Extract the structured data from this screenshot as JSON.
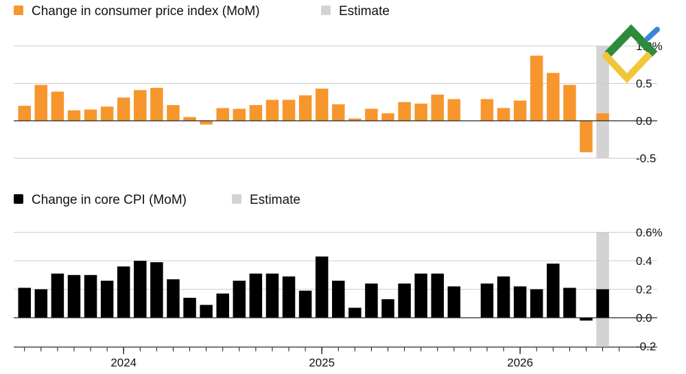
{
  "colors": {
    "cpi": "#f7962d",
    "core": "#000000",
    "estimate": "#d3d3d3",
    "grid": "#cccccc",
    "zero": "#222222"
  },
  "logo": {
    "name": "brand-logo",
    "colors": [
      "#2e8b3c",
      "#f2c63a",
      "#3a86d6"
    ]
  },
  "chart_data": [
    {
      "type": "bar",
      "series": [
        {
          "name": "Change in consumer price index (MoM)",
          "values": [
            0.2,
            0.48,
            0.39,
            0.14,
            0.15,
            0.19,
            0.31,
            0.41,
            0.44,
            0.21,
            0.05,
            -0.05,
            0.17,
            0.16,
            0.21,
            0.28,
            0.28,
            0.34,
            0.43,
            0.22,
            0.03,
            0.16,
            0.1,
            0.25,
            0.23,
            0.35,
            0.29,
            null,
            0.29,
            0.17,
            0.27,
            0.87,
            0.64,
            0.48,
            -0.42,
            0.1
          ]
        }
      ],
      "legend": [
        {
          "label": "Change in consumer price index (MoM)",
          "color": "#f7962d"
        },
        {
          "label": "Estimate",
          "color": "#d3d3d3"
        }
      ],
      "yticks": [
        {
          "v": 1.0,
          "label": "1.0%"
        },
        {
          "v": 0.5,
          "label": "0.5"
        },
        {
          "v": 0.0,
          "label": "0.0"
        },
        {
          "v": -0.5,
          "label": "-0.5"
        }
      ],
      "ylim": [
        -0.5,
        1.0
      ],
      "estimate_index": 35
    },
    {
      "type": "bar",
      "series": [
        {
          "name": "Change in core CPI (MoM)",
          "values": [
            0.21,
            0.2,
            0.31,
            0.3,
            0.3,
            0.26,
            0.36,
            0.4,
            0.39,
            0.27,
            0.14,
            0.09,
            0.17,
            0.26,
            0.31,
            0.31,
            0.29,
            0.19,
            0.43,
            0.26,
            0.07,
            0.24,
            0.13,
            0.24,
            0.31,
            0.31,
            0.22,
            null,
            0.24,
            0.29,
            0.22,
            0.2,
            0.38,
            0.21,
            -0.02,
            0.2
          ]
        }
      ],
      "legend": [
        {
          "label": "Change in core CPI (MoM)",
          "color": "#000000"
        },
        {
          "label": "Estimate",
          "color": "#d3d3d3"
        }
      ],
      "yticks": [
        {
          "v": 0.6,
          "label": "0.6%"
        },
        {
          "v": 0.4,
          "label": "0.4"
        },
        {
          "v": 0.2,
          "label": "0.2"
        },
        {
          "v": 0.0,
          "label": "0.0"
        },
        {
          "v": -0.2,
          "label": "-0.2"
        }
      ],
      "ylim": [
        -0.2,
        0.6
      ],
      "estimate_index": 35
    }
  ],
  "x_axis": {
    "years": [
      {
        "label": "2024",
        "month_index": 6
      },
      {
        "label": "2025",
        "month_index": 18
      },
      {
        "label": "2026",
        "month_index": 30
      }
    ],
    "tick_count": 37
  }
}
